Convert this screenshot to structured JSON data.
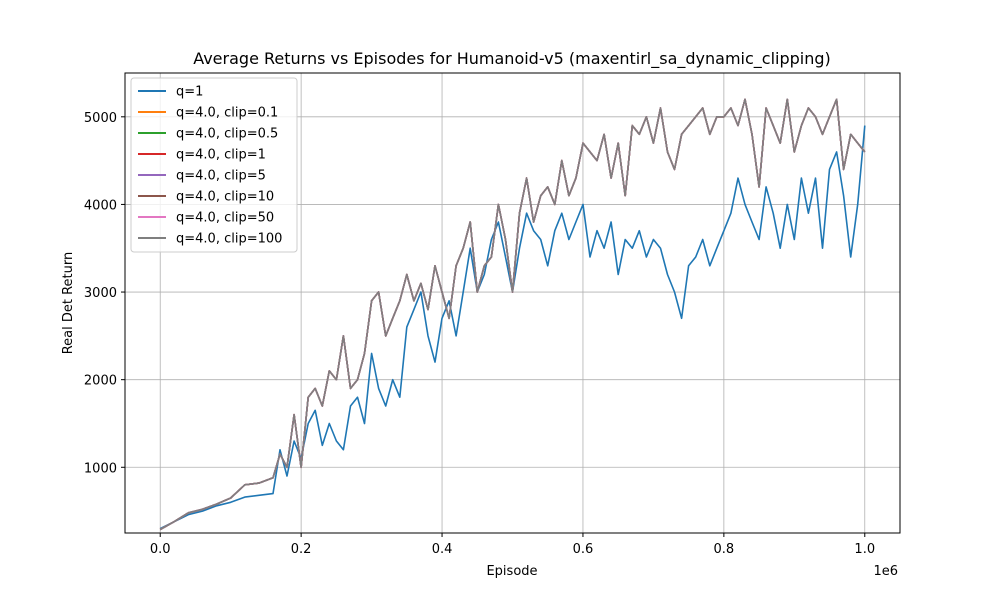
{
  "chart_data": {
    "type": "line",
    "title": "Average Returns vs Episodes for Humanoid-v5 (maxentirl_sa_dynamic_clipping)",
    "xlabel": "Episode",
    "ylabel": "Real Det Return",
    "x_offset_label": "1e6",
    "xlim": [
      -0.05,
      1.05
    ],
    "ylim": [
      250,
      5500
    ],
    "x_ticks": [
      0.0,
      0.2,
      0.4,
      0.6,
      0.8,
      1.0
    ],
    "x_tick_labels": [
      "0.0",
      "0.2",
      "0.4",
      "0.6",
      "0.8",
      "1.0"
    ],
    "y_ticks": [
      1000,
      2000,
      3000,
      4000,
      5000
    ],
    "y_tick_labels": [
      "1000",
      "2000",
      "3000",
      "4000",
      "5000"
    ],
    "grid": true,
    "legend_position": "upper-left",
    "x": [
      0.0,
      0.02,
      0.04,
      0.06,
      0.08,
      0.1,
      0.12,
      0.14,
      0.16,
      0.17,
      0.18,
      0.19,
      0.2,
      0.21,
      0.22,
      0.23,
      0.24,
      0.25,
      0.26,
      0.27,
      0.28,
      0.29,
      0.3,
      0.31,
      0.32,
      0.33,
      0.34,
      0.35,
      0.36,
      0.37,
      0.38,
      0.39,
      0.4,
      0.41,
      0.42,
      0.43,
      0.44,
      0.45,
      0.46,
      0.47,
      0.48,
      0.49,
      0.5,
      0.51,
      0.52,
      0.53,
      0.54,
      0.55,
      0.56,
      0.57,
      0.58,
      0.59,
      0.6,
      0.61,
      0.62,
      0.63,
      0.64,
      0.65,
      0.66,
      0.67,
      0.68,
      0.69,
      0.7,
      0.71,
      0.72,
      0.73,
      0.74,
      0.75,
      0.76,
      0.77,
      0.78,
      0.79,
      0.8,
      0.81,
      0.82,
      0.83,
      0.84,
      0.85,
      0.86,
      0.87,
      0.88,
      0.89,
      0.9,
      0.91,
      0.92,
      0.93,
      0.94,
      0.95,
      0.96,
      0.97,
      0.98,
      0.99,
      1.0
    ],
    "series": [
      {
        "name": "q=1",
        "color": "#1f77b4",
        "values": [
          300,
          380,
          460,
          500,
          560,
          600,
          660,
          680,
          700,
          1200,
          900,
          1300,
          1100,
          1500,
          1650,
          1250,
          1500,
          1300,
          1200,
          1700,
          1800,
          1500,
          2300,
          1900,
          1700,
          2000,
          1800,
          2600,
          2800,
          3000,
          2500,
          2200,
          2700,
          2900,
          2500,
          3000,
          3500,
          3000,
          3200,
          3600,
          3800,
          3400,
          3000,
          3500,
          3900,
          3700,
          3600,
          3300,
          3700,
          3900,
          3600,
          3800,
          4000,
          3400,
          3700,
          3500,
          3800,
          3200,
          3600,
          3500,
          3700,
          3400,
          3600,
          3500,
          3200,
          3000,
          2700,
          3300,
          3400,
          3600,
          3300,
          3500,
          3700,
          3900,
          4300,
          4000,
          3800,
          3600,
          4200,
          3900,
          3500,
          4000,
          3600,
          4300,
          3900,
          4300,
          3500,
          4400,
          4600,
          4100,
          3400,
          4000,
          4900
        ]
      },
      {
        "name": "q=4.0, clip=0.1",
        "color": "#ff7f0e",
        "values": [
          290,
          380,
          480,
          520,
          580,
          650,
          800,
          820,
          880,
          1150,
          1000,
          1600,
          1000,
          1800,
          1900,
          1700,
          2100,
          2000,
          2500,
          1900,
          2000,
          2300,
          2900,
          3000,
          2500,
          2700,
          2900,
          3200,
          2900,
          3100,
          2800,
          3300,
          3000,
          2700,
          3300,
          3500,
          3800,
          3000,
          3300,
          3400,
          4000,
          3600,
          3000,
          3900,
          4300,
          3800,
          4100,
          4200,
          4000,
          4500,
          4100,
          4300,
          4700,
          4600,
          4500,
          4800,
          4300,
          4700,
          4100,
          4900,
          4800,
          5000,
          4700,
          5100,
          4600,
          4400,
          4800,
          4900,
          5000,
          5100,
          4800,
          5000,
          5000,
          5100,
          4900,
          5200,
          4800,
          4200,
          5100,
          4900,
          4700,
          5200,
          4600,
          4900,
          5100,
          5000,
          4800,
          5000,
          5200,
          4400,
          4800,
          4700,
          4600
        ]
      },
      {
        "name": "q=4.0, clip=0.5",
        "color": "#2ca02c",
        "values": [
          290,
          380,
          480,
          520,
          580,
          650,
          800,
          820,
          880,
          1150,
          1000,
          1600,
          1000,
          1800,
          1900,
          1700,
          2100,
          2000,
          2500,
          1900,
          2000,
          2300,
          2900,
          3000,
          2500,
          2700,
          2900,
          3200,
          2900,
          3100,
          2800,
          3300,
          3000,
          2700,
          3300,
          3500,
          3800,
          3000,
          3300,
          3400,
          4000,
          3600,
          3000,
          3900,
          4300,
          3800,
          4100,
          4200,
          4000,
          4500,
          4100,
          4300,
          4700,
          4600,
          4500,
          4800,
          4300,
          4700,
          4100,
          4900,
          4800,
          5000,
          4700,
          5100,
          4600,
          4400,
          4800,
          4900,
          5000,
          5100,
          4800,
          5000,
          5000,
          5100,
          4900,
          5200,
          4800,
          4200,
          5100,
          4900,
          4700,
          5200,
          4600,
          4900,
          5100,
          5000,
          4800,
          5000,
          5200,
          4400,
          4800,
          4700,
          4600
        ]
      },
      {
        "name": "q=4.0, clip=1",
        "color": "#d62728",
        "values": [
          290,
          380,
          480,
          520,
          580,
          650,
          800,
          820,
          880,
          1150,
          1000,
          1600,
          1000,
          1800,
          1900,
          1700,
          2100,
          2000,
          2500,
          1900,
          2000,
          2300,
          2900,
          3000,
          2500,
          2700,
          2900,
          3200,
          2900,
          3100,
          2800,
          3300,
          3000,
          2700,
          3300,
          3500,
          3800,
          3000,
          3300,
          3400,
          4000,
          3600,
          3000,
          3900,
          4300,
          3800,
          4100,
          4200,
          4000,
          4500,
          4100,
          4300,
          4700,
          4600,
          4500,
          4800,
          4300,
          4700,
          4100,
          4900,
          4800,
          5000,
          4700,
          5100,
          4600,
          4400,
          4800,
          4900,
          5000,
          5100,
          4800,
          5000,
          5000,
          5100,
          4900,
          5200,
          4800,
          4200,
          5100,
          4900,
          4700,
          5200,
          4600,
          4900,
          5100,
          5000,
          4800,
          5000,
          5200,
          4400,
          4800,
          4700,
          4600
        ]
      },
      {
        "name": "q=4.0, clip=5",
        "color": "#9467bd",
        "values": [
          290,
          380,
          480,
          520,
          580,
          650,
          800,
          820,
          880,
          1150,
          1000,
          1600,
          1000,
          1800,
          1900,
          1700,
          2100,
          2000,
          2500,
          1900,
          2000,
          2300,
          2900,
          3000,
          2500,
          2700,
          2900,
          3200,
          2900,
          3100,
          2800,
          3300,
          3000,
          2700,
          3300,
          3500,
          3800,
          3000,
          3300,
          3400,
          4000,
          3600,
          3000,
          3900,
          4300,
          3800,
          4100,
          4200,
          4000,
          4500,
          4100,
          4300,
          4700,
          4600,
          4500,
          4800,
          4300,
          4700,
          4100,
          4900,
          4800,
          5000,
          4700,
          5100,
          4600,
          4400,
          4800,
          4900,
          5000,
          5100,
          4800,
          5000,
          5000,
          5100,
          4900,
          5200,
          4800,
          4200,
          5100,
          4900,
          4700,
          5200,
          4600,
          4900,
          5100,
          5000,
          4800,
          5000,
          5200,
          4400,
          4800,
          4700,
          4600
        ]
      },
      {
        "name": "q=4.0, clip=10",
        "color": "#8c564b",
        "values": [
          290,
          380,
          480,
          520,
          580,
          650,
          800,
          820,
          880,
          1150,
          1000,
          1600,
          1000,
          1800,
          1900,
          1700,
          2100,
          2000,
          2500,
          1900,
          2000,
          2300,
          2900,
          3000,
          2500,
          2700,
          2900,
          3200,
          2900,
          3100,
          2800,
          3300,
          3000,
          2700,
          3300,
          3500,
          3800,
          3000,
          3300,
          3400,
          4000,
          3600,
          3000,
          3900,
          4300,
          3800,
          4100,
          4200,
          4000,
          4500,
          4100,
          4300,
          4700,
          4600,
          4500,
          4800,
          4300,
          4700,
          4100,
          4900,
          4800,
          5000,
          4700,
          5100,
          4600,
          4400,
          4800,
          4900,
          5000,
          5100,
          4800,
          5000,
          5000,
          5100,
          4900,
          5200,
          4800,
          4200,
          5100,
          4900,
          4700,
          5200,
          4600,
          4900,
          5100,
          5000,
          4800,
          5000,
          5200,
          4400,
          4800,
          4700,
          4600
        ]
      },
      {
        "name": "q=4.0, clip=50",
        "color": "#e377c2",
        "values": [
          290,
          380,
          480,
          520,
          580,
          650,
          800,
          820,
          880,
          1150,
          1000,
          1600,
          1000,
          1800,
          1900,
          1700,
          2100,
          2000,
          2500,
          1900,
          2000,
          2300,
          2900,
          3000,
          2500,
          2700,
          2900,
          3200,
          2900,
          3100,
          2800,
          3300,
          3000,
          2700,
          3300,
          3500,
          3800,
          3000,
          3300,
          3400,
          4000,
          3600,
          3000,
          3900,
          4300,
          3800,
          4100,
          4200,
          4000,
          4500,
          4100,
          4300,
          4700,
          4600,
          4500,
          4800,
          4300,
          4700,
          4100,
          4900,
          4800,
          5000,
          4700,
          5100,
          4600,
          4400,
          4800,
          4900,
          5000,
          5100,
          4800,
          5000,
          5000,
          5100,
          4900,
          5200,
          4800,
          4200,
          5100,
          4900,
          4700,
          5200,
          4600,
          4900,
          5100,
          5000,
          4800,
          5000,
          5200,
          4400,
          4800,
          4700,
          4600
        ]
      },
      {
        "name": "q=4.0, clip=100",
        "color": "#7f7f7f",
        "values": [
          290,
          380,
          480,
          520,
          580,
          650,
          800,
          820,
          880,
          1150,
          1000,
          1600,
          1000,
          1800,
          1900,
          1700,
          2100,
          2000,
          2500,
          1900,
          2000,
          2300,
          2900,
          3000,
          2500,
          2700,
          2900,
          3200,
          2900,
          3100,
          2800,
          3300,
          3000,
          2700,
          3300,
          3500,
          3800,
          3000,
          3300,
          3400,
          4000,
          3600,
          3000,
          3900,
          4300,
          3800,
          4100,
          4200,
          4000,
          4500,
          4100,
          4300,
          4700,
          4600,
          4500,
          4800,
          4300,
          4700,
          4100,
          4900,
          4800,
          5000,
          4700,
          5100,
          4600,
          4400,
          4800,
          4900,
          5000,
          5100,
          4800,
          5000,
          5000,
          5100,
          4900,
          5200,
          4800,
          4200,
          5100,
          4900,
          4700,
          5200,
          4600,
          4900,
          5100,
          5000,
          4800,
          5000,
          5200,
          4400,
          4800,
          4700,
          4600
        ]
      }
    ]
  }
}
